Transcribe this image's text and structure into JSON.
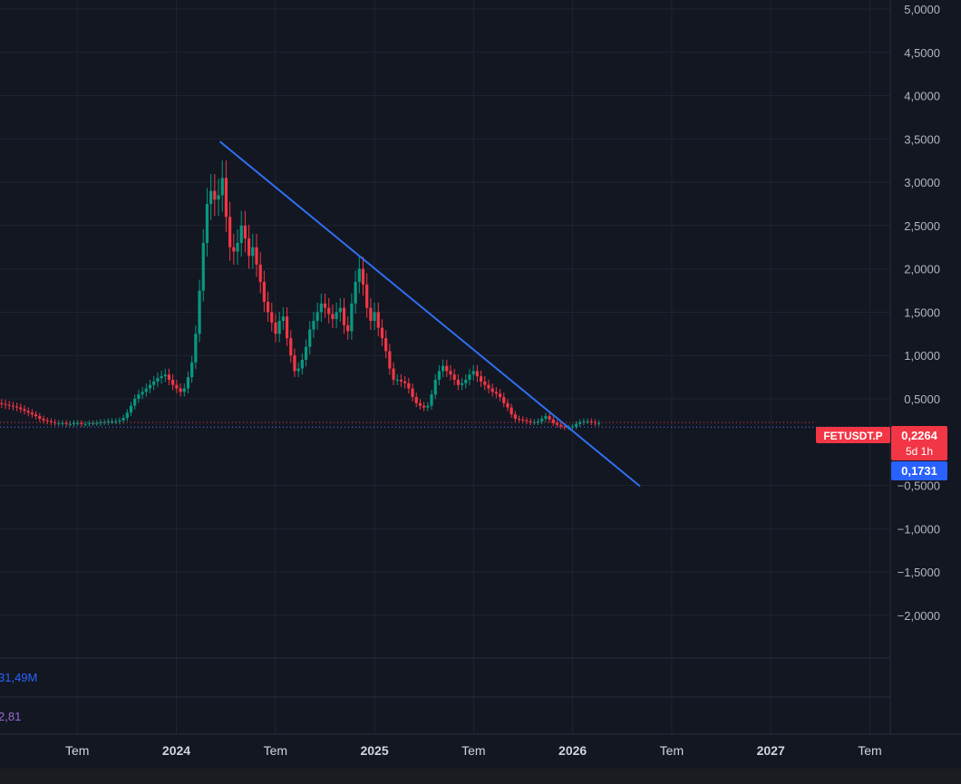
{
  "chart_data": {
    "type": "candlestick",
    "symbol": "FETUSDT.P",
    "last_price": "0,2264",
    "countdown": "5d 1h",
    "crosshair_price": "0,1731",
    "volume_label": "31,49M",
    "indicator_label": "2,81",
    "ylim": [
      -2.2,
      5.0
    ],
    "y_ticks": [
      {
        "v": 5.0,
        "label": "5,0000"
      },
      {
        "v": 4.5,
        "label": "4,5000"
      },
      {
        "v": 4.0,
        "label": "4,0000"
      },
      {
        "v": 3.5,
        "label": "3,5000"
      },
      {
        "v": 3.0,
        "label": "3,0000"
      },
      {
        "v": 2.5,
        "label": "2,5000"
      },
      {
        "v": 2.0,
        "label": "2,0000"
      },
      {
        "v": 1.5,
        "label": "1,5000"
      },
      {
        "v": 1.0,
        "label": "1,0000"
      },
      {
        "v": 0.5,
        "label": "0,5000"
      },
      {
        "v": -0.5,
        "label": "−0,5000"
      },
      {
        "v": -1.0,
        "label": "−1,0000"
      },
      {
        "v": -1.5,
        "label": "−1,5000"
      },
      {
        "v": -2.0,
        "label": "−2,0000"
      }
    ],
    "x_ticks": [
      {
        "t": 2023.5,
        "label": "Tem",
        "bold": false
      },
      {
        "t": 2024.0,
        "label": "2024",
        "bold": true
      },
      {
        "t": 2024.5,
        "label": "Tem",
        "bold": false
      },
      {
        "t": 2025.0,
        "label": "2025",
        "bold": true
      },
      {
        "t": 2025.5,
        "label": "Tem",
        "bold": false
      },
      {
        "t": 2026.0,
        "label": "2026",
        "bold": true
      },
      {
        "t": 2026.5,
        "label": "Tem",
        "bold": false
      },
      {
        "t": 2027.0,
        "label": "2027",
        "bold": true
      },
      {
        "t": 2027.5,
        "label": "Tem",
        "bold": false
      }
    ],
    "xlim": [
      2023.11,
      2027.96
    ],
    "trendline": {
      "t1": 2024.22,
      "v1": 3.47,
      "t2": 2026.34,
      "v2": -0.51
    },
    "bar_interval": 0.0192,
    "closes": [
      0.46,
      0.45,
      0.44,
      0.43,
      0.42,
      0.41,
      0.4,
      0.38,
      0.36,
      0.34,
      0.32,
      0.3,
      0.27,
      0.25,
      0.24,
      0.23,
      0.22,
      0.22,
      0.22,
      0.21,
      0.21,
      0.22,
      0.22,
      0.21,
      0.21,
      0.22,
      0.22,
      0.22,
      0.23,
      0.23,
      0.24,
      0.24,
      0.24,
      0.25,
      0.28,
      0.34,
      0.42,
      0.5,
      0.55,
      0.58,
      0.62,
      0.66,
      0.7,
      0.74,
      0.76,
      0.78,
      0.72,
      0.66,
      0.62,
      0.58,
      0.62,
      0.75,
      0.92,
      1.25,
      1.75,
      2.3,
      2.75,
      2.9,
      2.8,
      2.85,
      3.05,
      2.6,
      2.25,
      2.2,
      2.3,
      2.5,
      2.35,
      2.15,
      2.25,
      2.05,
      1.85,
      1.62,
      1.5,
      1.38,
      1.25,
      1.4,
      1.45,
      1.2,
      1.0,
      0.82,
      0.85,
      0.95,
      1.1,
      1.3,
      1.4,
      1.5,
      1.6,
      1.55,
      1.48,
      1.42,
      1.5,
      1.55,
      1.35,
      1.28,
      1.6,
      1.85,
      2.0,
      1.82,
      1.55,
      1.4,
      1.5,
      1.32,
      1.2,
      1.05,
      0.85,
      0.72,
      0.72,
      0.7,
      0.68,
      0.62,
      0.52,
      0.45,
      0.42,
      0.4,
      0.42,
      0.55,
      0.72,
      0.82,
      0.88,
      0.82,
      0.78,
      0.72,
      0.66,
      0.68,
      0.72,
      0.78,
      0.82,
      0.76,
      0.7,
      0.66,
      0.62,
      0.58,
      0.56,
      0.52,
      0.45,
      0.4,
      0.32,
      0.27,
      0.26,
      0.25,
      0.24,
      0.23,
      0.23,
      0.24,
      0.27,
      0.3,
      0.26,
      0.22,
      0.2,
      0.18,
      0.17,
      0.17,
      0.18,
      0.21,
      0.23,
      0.24,
      0.24,
      0.23,
      0.22,
      0.22
    ]
  }
}
